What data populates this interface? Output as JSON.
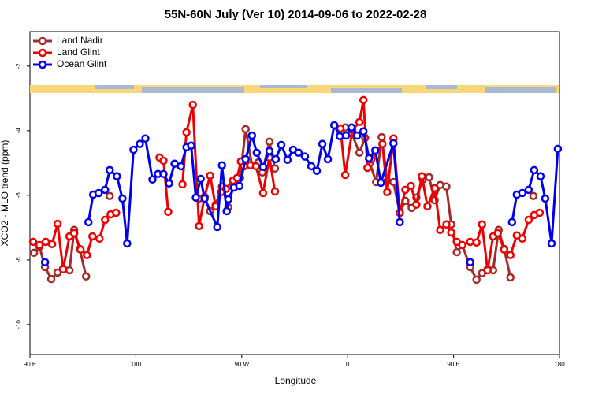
{
  "chart_data": {
    "type": "line",
    "title": "55N-60N July (Ver 10)   2014-09-06 to 2022-02-28",
    "x_label": "Longitude",
    "y_label": "XCO2 - MLO trend (ppm)",
    "xlim": [
      90,
      540
    ],
    "ylim": [
      -10.93,
      -0.93
    ],
    "xticks": [
      {
        "value": 90,
        "label": "90 E"
      },
      180,
      {
        "value": 270,
        "label": "90 W"
      },
      {
        "value": 360,
        "label": "0"
      },
      {
        "value": 450,
        "label": "90 E"
      },
      {
        "value": 540,
        "label": "180"
      }
    ],
    "yticks": [
      -2,
      -4,
      -6,
      -8,
      -10
    ],
    "legend": "upper left",
    "series": [
      {
        "name": "Land Nadir",
        "color": "#a52a2a",
        "x": [
          93.4,
          98.1,
          102.8,
          108.1,
          113.5,
          118.2,
          123.6,
          127.6,
          132.3,
          137.7,
          null,
          157.8,
          null,
          233.7,
          238.4,
          243.1,
          247.8,
          253.2,
          258.6,
          263.9,
          268.6,
          273.3,
          278.7,
          284.1,
          287.5,
          293.5,
          298.2,
          null,
          353.9,
          357.9,
          363.3,
          370.0,
          374.8,
          378.8,
          384.2,
          388.9,
          393.6,
          398.9,
          404.3,
          409.0,
          414.4,
          418.4,
          423.8,
          429.2,
          433.9,
          438.6,
          443.9,
          448.0,
          452.7,
          457.4,
          464.1,
          469.5,
          474.2,
          478.9,
          483.6,
          488.3,
          493.0,
          498.3,
          null,
          517.8
        ],
        "values": [
          -7.78,
          -7.59,
          -8.22,
          -8.59,
          -8.39,
          -8.27,
          -8.32,
          -7.07,
          -7.66,
          -8.51,
          null,
          -6.02,
          null,
          -6.1,
          -6.05,
          -6.49,
          -6.29,
          -5.73,
          -6.37,
          -5.54,
          -5.46,
          -3.95,
          -5.07,
          -4.98,
          -5.29,
          -4.34,
          -5.17,
          null,
          -3.93,
          -3.9,
          -4.07,
          -4.68,
          -4.22,
          -5.0,
          -5.59,
          -4.2,
          -5.56,
          -5.59,
          -6.54,
          -6.17,
          -6.39,
          -6.07,
          -5.51,
          -5.44,
          -6.15,
          -5.68,
          -5.73,
          -6.9,
          -7.76,
          -7.54,
          -8.22,
          -8.61,
          -8.41,
          -8.29,
          -8.32,
          -7.07,
          -7.66,
          -8.54,
          null,
          -6.02
        ]
      },
      {
        "name": "Land Glint",
        "color": "#ee0000",
        "x": [
          92.7,
          98.1,
          103.4,
          108.8,
          113.5,
          118.2,
          123.6,
          127.6,
          133.0,
          138.4,
          143.1,
          149.1,
          153.8,
          158.5,
          163.2,
          null,
          200.1,
          203.5,
          207.5,
          null,
          219.6,
          223.0,
          228.4,
          233.7,
          238.4,
          243.1,
          247.8,
          252.5,
          256.6,
          262.6,
          266.0,
          269.3,
          272.0,
          277.4,
          282.1,
          288.1,
          293.5,
          298.2,
          null,
          353.9,
          357.9,
          364.0,
          370.0,
          373.4,
          376.8,
          380.1,
          389.5,
          393.6,
          398.9,
          404.3,
          409.0,
          413.7,
          418.4,
          423.1,
          427.8,
          433.9,
          438.6,
          443.9,
          448.0,
          452.7,
          457.4,
          464.1,
          469.5,
          474.2,
          478.9,
          483.6,
          487.6,
          493.0,
          498.3,
          503.7,
          508.4,
          513.8,
          518.5,
          523.2
        ],
        "values": [
          -7.44,
          -7.54,
          -7.44,
          -7.51,
          -6.88,
          -8.29,
          -7.27,
          -7.17,
          -7.68,
          -7.85,
          -7.27,
          -7.34,
          -6.76,
          -6.59,
          -6.54,
          null,
          -4.83,
          -4.93,
          -6.51,
          null,
          -5.66,
          -4.05,
          -3.2,
          -6.95,
          -6.05,
          -5.39,
          -6.34,
          -5.9,
          -5.8,
          -5.54,
          -5.46,
          -4.95,
          -5.1,
          -5.07,
          -5.1,
          -5.93,
          -4.83,
          -5.88,
          null,
          -3.93,
          -5.37,
          -3.98,
          -3.73,
          -3.05,
          -5.15,
          -4.88,
          -4.41,
          -5.9,
          -4.24,
          -6.54,
          -5.83,
          -5.71,
          -6.29,
          -5.41,
          -6.34,
          -5.78,
          -7.07,
          -6.9,
          -7.15,
          -7.44,
          -7.54,
          -7.44,
          -7.46,
          -6.9,
          -8.32,
          -7.27,
          -7.17,
          -7.68,
          -7.85,
          -7.24,
          -7.34,
          -6.76,
          -6.61,
          -6.54
        ]
      },
      {
        "name": "Ocean Glint",
        "color": "#0000ee",
        "x": [
          102.8,
          null,
          139.7,
          143.7,
          148.4,
          153.8,
          157.8,
          163.9,
          168.6,
          172.6,
          178.0,
          183.4,
          188.1,
          194.1,
          198.8,
          203.5,
          208.2,
          212.9,
          218.3,
          223.0,
          227.0,
          231.0,
          235.1,
          238.4,
          249.2,
          253.2,
          257.2,
          258.6,
          263.3,
          268.0,
          273.3,
          278.7,
          282.7,
          288.1,
          293.5,
          298.9,
          303.6,
          308.9,
          313.6,
          318.3,
          323.7,
          329.1,
          333.8,
          338.5,
          343.2,
          348.6,
          353.3,
          358.6,
          363.3,
          368.0,
          373.4,
          378.1,
          383.5,
          388.2,
          398.9,
          404.3,
          null,
          464.1,
          null,
          499.7,
          503.7,
          508.4,
          513.8,
          518.5,
          523.9,
          527.9,
          533.3,
          538.6
        ],
        "values": [
          -8.07,
          null,
          -6.83,
          -5.98,
          -5.93,
          -5.83,
          -5.22,
          -5.41,
          -6.1,
          -7.49,
          -4.59,
          -4.41,
          -4.24,
          -5.51,
          -5.34,
          -5.34,
          -5.63,
          -5.02,
          -5.1,
          -4.51,
          -4.46,
          -6.07,
          -5.49,
          -6.1,
          -6.98,
          -5.07,
          -6.49,
          -6.12,
          -5.76,
          -5.71,
          -4.88,
          -4.15,
          -4.68,
          -5.12,
          -4.63,
          -4.88,
          -4.44,
          -4.9,
          -4.59,
          -4.68,
          -4.8,
          -5.1,
          -5.24,
          -4.41,
          -4.88,
          -3.83,
          -4.17,
          -4.15,
          -3.9,
          -4.15,
          -4.02,
          -4.85,
          -4.61,
          -5.61,
          -4.39,
          -6.83,
          null,
          -8.07,
          null,
          -6.83,
          -5.98,
          -5.93,
          -5.83,
          -5.22,
          -5.41,
          -6.1,
          -7.49,
          -4.56
        ]
      }
    ]
  }
}
